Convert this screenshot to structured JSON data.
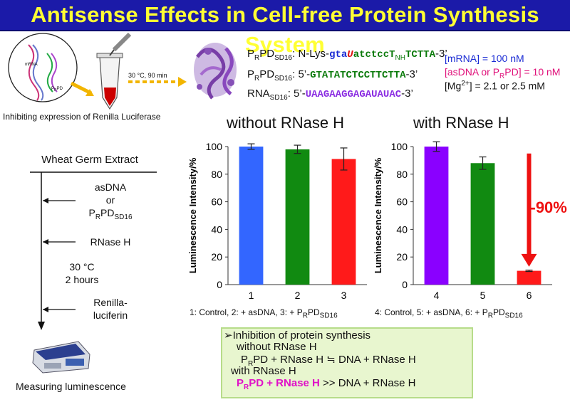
{
  "title": "Antisense Effects in Cell-free Protein Synthesis System",
  "top": {
    "circle_labels": {
      "mrna": "mRNA",
      "prpd_main": "P",
      "prpd_sub": "R",
      "prpd_end": "PD"
    },
    "incubation": "30 °C, 90 min",
    "caption": "Inhibiting expression of Renilla Luciferase",
    "sequences": [
      {
        "name_main": "P",
        "name_sub1": "R",
        "name_mid": "PD",
        "name_sub2": "SD16",
        "prefix": ": N-Lys-",
        "seq_a": "gta",
        "seq_b": "U",
        "seq_c": "atctcc",
        "seq_d": "T",
        "seq_d_sub": "NH",
        "seq_e": "TCTTA",
        "suffix": "-3’"
      },
      {
        "name_main": "P",
        "name_sub1": "R",
        "name_mid": "PD",
        "name_sub2": "SD16",
        "prefix": ": 5’-",
        "seq": "GTATATCTCCTTCTTA",
        "suffix": "-3’"
      },
      {
        "name_main": "RNA",
        "name_sub2": "SD16",
        "prefix": ": 5’-",
        "seq": "UAAGAAGGAGAUAUAC",
        "suffix": "-3’"
      }
    ],
    "conditions": {
      "mrna": "[mRNA] = 100 nM",
      "asdna_a": "[asDNA or P",
      "asdna_sub": "R",
      "asdna_b": "PD] = 10 nM",
      "mg_a": "[Mg",
      "mg_sup": "2+",
      "mg_b": "] = 2.1 or 2.5 mM"
    }
  },
  "procedure": {
    "header": "Wheat Germ Extract",
    "step1_a": "asDNA",
    "step1_b": "or",
    "step1_c_main": "P",
    "step1_c_sub1": "R",
    "step1_c_mid": "PD",
    "step1_c_sub2": "SD16",
    "step2": "RNase H",
    "incubate_a": "30 °C",
    "incubate_b": "2 hours",
    "step3_a": "Renilla-",
    "step3_b": "luciferin",
    "measure": "Measuring luminescence"
  },
  "chart_data": [
    {
      "type": "bar",
      "title": "without RNase H",
      "ylabel": "Luminescence Intensity/%",
      "ylim": [
        0,
        100
      ],
      "yticks": [
        0,
        20,
        40,
        60,
        80,
        100
      ],
      "categories": [
        "1",
        "2",
        "3"
      ],
      "values": [
        100,
        98,
        91
      ],
      "errors": [
        2,
        3,
        8
      ],
      "colors": [
        "#3366ff",
        "#118a11",
        "#ff1a1a"
      ],
      "caption": {
        "a": "1: Control, 2: + asDNA, 3: + P",
        "b": "R",
        "c": "PD",
        "d": "SD16"
      }
    },
    {
      "type": "bar",
      "title": "with RNase H",
      "ylabel": "Luminescence Intensity/%",
      "ylim": [
        0,
        100
      ],
      "yticks": [
        0,
        20,
        40,
        60,
        80,
        100
      ],
      "categories": [
        "4",
        "5",
        "6"
      ],
      "values": [
        100,
        88,
        10
      ],
      "errors": [
        3.5,
        4.5,
        0.5
      ],
      "colors": [
        "#8a00ff",
        "#118a11",
        "#ff1a1a"
      ],
      "annotation": "-90%",
      "caption": {
        "a": "4: Control, 5: + asDNA, 6: + P",
        "b": "R",
        "c": "PD",
        "d": "SD16"
      }
    }
  ],
  "summary": {
    "line1": "Inhibition of protein synthesis",
    "line2": "without RNase H",
    "line3_a": "P",
    "line3_sub": "R",
    "line3_b": "PD + RNase H ≒ DNA + RNase H",
    "line4": "with RNase H",
    "line5_a": "P",
    "line5_sub": "R",
    "line5_b": "PD + RNase H",
    "line5_c": " >> DNA + RNase H"
  },
  "colors": {
    "title_bg": "#1b1aa8",
    "title_text": "#ffff33",
    "summary_bg": "#e8f6cf"
  }
}
